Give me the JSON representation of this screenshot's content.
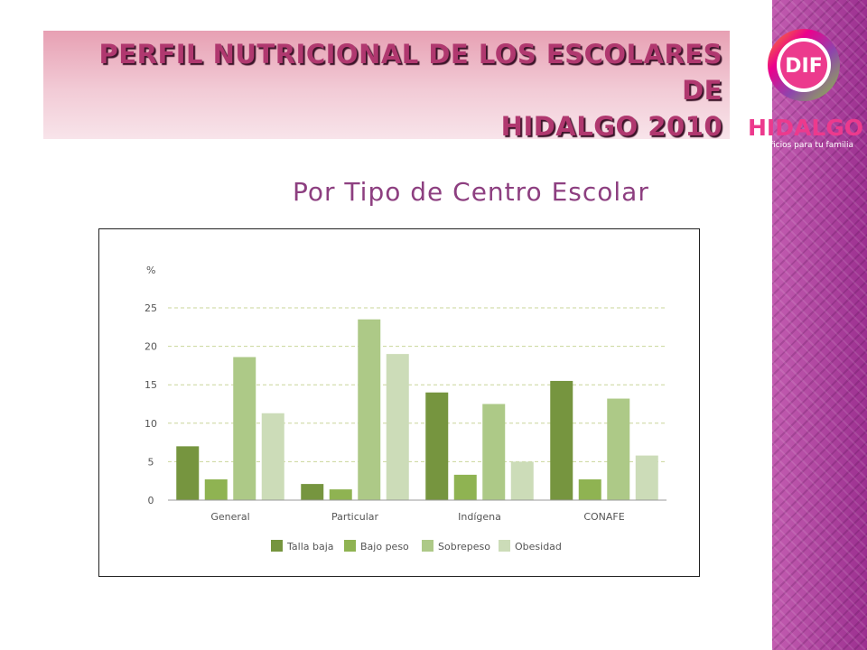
{
  "header": {
    "title_line1": "PERFIL NUTRICIONAL DE LOS ESCOLARES DE",
    "title_line2": "HIDALGO 2010"
  },
  "logo": {
    "badge_text": "DIF",
    "brand_text": "HIDALGO",
    "tagline": "Beneficios para tu familia"
  },
  "subtitle": "Por Tipo de Centro Escolar",
  "colors": {
    "talla_baja": "#76953f",
    "bajo_peso": "#8fb352",
    "sobrepeso": "#adc987",
    "obesidad": "#ccdcb8",
    "grid": "#c9d69a",
    "axis_text": "#555555"
  },
  "chart_data": {
    "type": "bar",
    "ylabel": "%",
    "ylim": [
      0,
      25
    ],
    "yticks": [
      0,
      5,
      10,
      15,
      20,
      25
    ],
    "grid": true,
    "legend_position": "bottom",
    "categories": [
      "General",
      "Particular",
      "Indígena",
      "CONAFE"
    ],
    "series": [
      {
        "name": "Talla baja",
        "values": [
          7.0,
          2.1,
          14.0,
          15.5
        ]
      },
      {
        "name": "Bajo peso",
        "values": [
          2.7,
          1.4,
          3.3,
          2.7
        ]
      },
      {
        "name": "Sobrepeso",
        "values": [
          18.6,
          23.5,
          12.5,
          13.2
        ]
      },
      {
        "name": "Obesidad",
        "values": [
          11.3,
          19.0,
          5.0,
          5.8
        ]
      }
    ]
  }
}
